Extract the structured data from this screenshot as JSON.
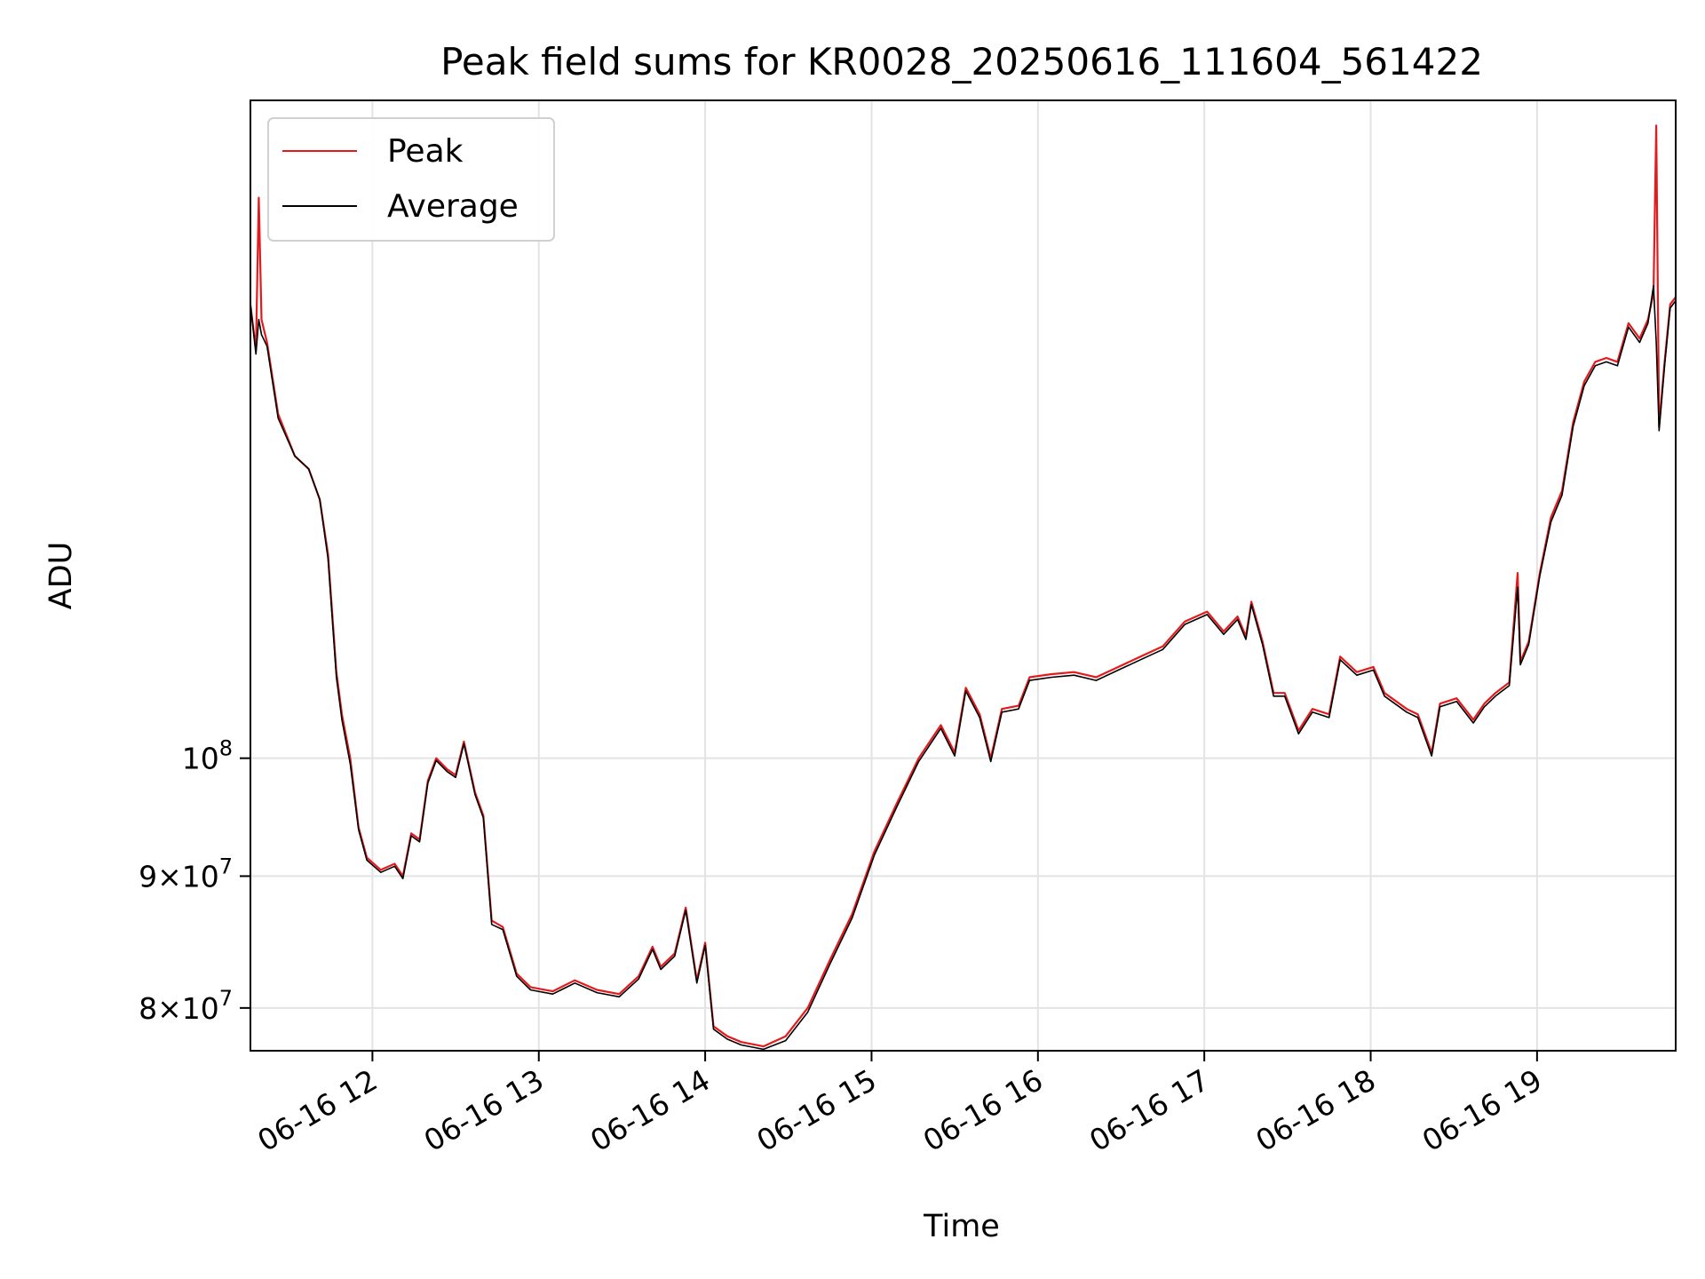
{
  "chart_data": {
    "type": "line",
    "title": "Peak field sums for KR0028_20250616_111604_561422",
    "xlabel": "Time",
    "ylabel": "ADU",
    "x_axis": {
      "kind": "datetime",
      "range": [
        "2025-06-16 11:16",
        "2025-06-16 19:50"
      ],
      "ticks": [
        "2025-06-16 12:00",
        "2025-06-16 13:00",
        "2025-06-16 14:00",
        "2025-06-16 15:00",
        "2025-06-16 16:00",
        "2025-06-16 17:00",
        "2025-06-16 18:00",
        "2025-06-16 19:00"
      ],
      "tick_labels": [
        "06-16 12",
        "06-16 13",
        "06-16 14",
        "06-16 15",
        "06-16 16",
        "06-16 17",
        "06-16 18",
        "06-16 19"
      ],
      "tick_rotation_deg": 30
    },
    "y_axis": {
      "scale": "log",
      "range": [
        77000000,
        180000000
      ],
      "ticks": [
        80000000,
        90000000,
        100000000
      ],
      "tick_labels": [
        {
          "base": "8",
          "exp": "7",
          "form": "times"
        },
        {
          "base": "9",
          "exp": "7",
          "form": "times"
        },
        {
          "base": "",
          "exp": "8",
          "form": "power"
        }
      ]
    },
    "grid": true,
    "legend_position": "upper-left",
    "colors": {
      "peak": "#e41a1c",
      "average": "#000000",
      "grid": "#e3e3e3"
    },
    "series": [
      {
        "name": "Peak",
        "color": "#e41a1c",
        "points": [
          [
            "2025-06-16 11:16",
            150000000
          ],
          [
            "2025-06-16 11:18",
            144000000
          ],
          [
            "2025-06-16 11:19",
            165000000
          ],
          [
            "2025-06-16 11:20",
            148000000
          ],
          [
            "2025-06-16 11:22",
            145000000
          ],
          [
            "2025-06-16 11:26",
            136000000
          ],
          [
            "2025-06-16 11:32",
            131000000
          ],
          [
            "2025-06-16 11:37",
            129500000
          ],
          [
            "2025-06-16 11:41",
            126000000
          ],
          [
            "2025-06-16 11:44",
            120000000
          ],
          [
            "2025-06-16 11:47",
            108000000
          ],
          [
            "2025-06-16 11:49",
            104000000
          ],
          [
            "2025-06-16 11:52",
            100000000
          ],
          [
            "2025-06-16 11:55",
            94000000
          ],
          [
            "2025-06-16 11:58",
            91500000
          ],
          [
            "2025-06-16 12:03",
            90500000
          ],
          [
            "2025-06-16 12:08",
            91000000
          ],
          [
            "2025-06-16 12:11",
            90000000
          ],
          [
            "2025-06-16 12:14",
            93500000
          ],
          [
            "2025-06-16 12:17",
            93000000
          ],
          [
            "2025-06-16 12:20",
            98000000
          ],
          [
            "2025-06-16 12:23",
            100000000
          ],
          [
            "2025-06-16 12:27",
            99000000
          ],
          [
            "2025-06-16 12:30",
            98500000
          ],
          [
            "2025-06-16 12:33",
            101500000
          ],
          [
            "2025-06-16 12:37",
            97000000
          ],
          [
            "2025-06-16 12:40",
            95000000
          ],
          [
            "2025-06-16 12:43",
            86500000
          ],
          [
            "2025-06-16 12:47",
            86000000
          ],
          [
            "2025-06-16 12:52",
            82500000
          ],
          [
            "2025-06-16 12:57",
            81500000
          ],
          [
            "2025-06-16 13:05",
            81200000
          ],
          [
            "2025-06-16 13:13",
            82000000
          ],
          [
            "2025-06-16 13:21",
            81300000
          ],
          [
            "2025-06-16 13:29",
            81000000
          ],
          [
            "2025-06-16 13:36",
            82300000
          ],
          [
            "2025-06-16 13:41",
            84500000
          ],
          [
            "2025-06-16 13:44",
            83000000
          ],
          [
            "2025-06-16 13:49",
            84000000
          ],
          [
            "2025-06-16 13:53",
            87500000
          ],
          [
            "2025-06-16 13:57",
            82000000
          ],
          [
            "2025-06-16 14:00",
            84800000
          ],
          [
            "2025-06-16 14:03",
            78700000
          ],
          [
            "2025-06-16 14:08",
            78000000
          ],
          [
            "2025-06-16 14:13",
            77600000
          ],
          [
            "2025-06-16 14:21",
            77300000
          ],
          [
            "2025-06-16 14:29",
            78000000
          ],
          [
            "2025-06-16 14:37",
            80000000
          ],
          [
            "2025-06-16 14:45",
            83500000
          ],
          [
            "2025-06-16 14:53",
            87000000
          ],
          [
            "2025-06-16 15:01",
            92000000
          ],
          [
            "2025-06-16 15:09",
            96000000
          ],
          [
            "2025-06-16 15:17",
            100000000
          ],
          [
            "2025-06-16 15:25",
            103000000
          ],
          [
            "2025-06-16 15:30",
            100500000
          ],
          [
            "2025-06-16 15:34",
            106500000
          ],
          [
            "2025-06-16 15:39",
            104000000
          ],
          [
            "2025-06-16 15:43",
            100000000
          ],
          [
            "2025-06-16 15:47",
            104500000
          ],
          [
            "2025-06-16 15:53",
            104800000
          ],
          [
            "2025-06-16 15:57",
            107500000
          ],
          [
            "2025-06-16 16:05",
            107800000
          ],
          [
            "2025-06-16 16:13",
            108000000
          ],
          [
            "2025-06-16 16:21",
            107500000
          ],
          [
            "2025-06-16 16:29",
            108500000
          ],
          [
            "2025-06-16 16:37",
            109500000
          ],
          [
            "2025-06-16 16:45",
            110500000
          ],
          [
            "2025-06-16 16:53",
            113000000
          ],
          [
            "2025-06-16 17:01",
            114000000
          ],
          [
            "2025-06-16 17:07",
            112000000
          ],
          [
            "2025-06-16 17:12",
            113500000
          ],
          [
            "2025-06-16 17:15",
            111500000
          ],
          [
            "2025-06-16 17:17",
            115000000
          ],
          [
            "2025-06-16 17:21",
            111000000
          ],
          [
            "2025-06-16 17:25",
            106000000
          ],
          [
            "2025-06-16 17:29",
            106000000
          ],
          [
            "2025-06-16 17:34",
            102500000
          ],
          [
            "2025-06-16 17:39",
            104500000
          ],
          [
            "2025-06-16 17:45",
            104000000
          ],
          [
            "2025-06-16 17:49",
            109500000
          ],
          [
            "2025-06-16 17:55",
            108000000
          ],
          [
            "2025-06-16 18:01",
            108500000
          ],
          [
            "2025-06-16 18:05",
            106000000
          ],
          [
            "2025-06-16 18:13",
            104500000
          ],
          [
            "2025-06-16 18:17",
            104000000
          ],
          [
            "2025-06-16 18:22",
            100500000
          ],
          [
            "2025-06-16 18:25",
            105000000
          ],
          [
            "2025-06-16 18:31",
            105500000
          ],
          [
            "2025-06-16 18:37",
            103500000
          ],
          [
            "2025-06-16 18:41",
            105000000
          ],
          [
            "2025-06-16 18:45",
            106000000
          ],
          [
            "2025-06-16 18:50",
            107000000
          ],
          [
            "2025-06-16 18:53",
            118000000
          ],
          [
            "2025-06-16 18:54",
            109000000
          ],
          [
            "2025-06-16 18:57",
            111000000
          ],
          [
            "2025-06-16 19:01",
            118000000
          ],
          [
            "2025-06-16 19:05",
            124000000
          ],
          [
            "2025-06-16 19:09",
            127000000
          ],
          [
            "2025-06-16 19:13",
            135000000
          ],
          [
            "2025-06-16 19:17",
            140000000
          ],
          [
            "2025-06-16 19:21",
            142500000
          ],
          [
            "2025-06-16 19:25",
            143000000
          ],
          [
            "2025-06-16 19:29",
            142500000
          ],
          [
            "2025-06-16 19:33",
            147500000
          ],
          [
            "2025-06-16 19:37",
            145500000
          ],
          [
            "2025-06-16 19:40",
            148000000
          ],
          [
            "2025-06-16 19:42",
            151500000
          ],
          [
            "2025-06-16 19:43",
            176000000
          ],
          [
            "2025-06-16 19:44",
            134500000
          ],
          [
            "2025-06-16 19:46",
            142500000
          ],
          [
            "2025-06-16 19:48",
            150000000
          ],
          [
            "2025-06-16 19:50",
            151000000
          ]
        ]
      },
      {
        "name": "Average",
        "color": "#000000",
        "points": [
          [
            "2025-06-16 11:16",
            150000000
          ],
          [
            "2025-06-16 11:18",
            143500000
          ],
          [
            "2025-06-16 11:19",
            148000000
          ],
          [
            "2025-06-16 11:20",
            146000000
          ],
          [
            "2025-06-16 11:22",
            144500000
          ],
          [
            "2025-06-16 11:26",
            135500000
          ],
          [
            "2025-06-16 11:32",
            131000000
          ],
          [
            "2025-06-16 11:37",
            129500000
          ],
          [
            "2025-06-16 11:41",
            126000000
          ],
          [
            "2025-06-16 11:44",
            119500000
          ],
          [
            "2025-06-16 11:47",
            107500000
          ],
          [
            "2025-06-16 11:49",
            103500000
          ],
          [
            "2025-06-16 11:52",
            99500000
          ],
          [
            "2025-06-16 11:55",
            93800000
          ],
          [
            "2025-06-16 11:58",
            91300000
          ],
          [
            "2025-06-16 12:03",
            90300000
          ],
          [
            "2025-06-16 12:08",
            90800000
          ],
          [
            "2025-06-16 12:11",
            89800000
          ],
          [
            "2025-06-16 12:14",
            93300000
          ],
          [
            "2025-06-16 12:17",
            92800000
          ],
          [
            "2025-06-16 12:20",
            97800000
          ],
          [
            "2025-06-16 12:23",
            99800000
          ],
          [
            "2025-06-16 12:27",
            98800000
          ],
          [
            "2025-06-16 12:30",
            98300000
          ],
          [
            "2025-06-16 12:33",
            101300000
          ],
          [
            "2025-06-16 12:37",
            96800000
          ],
          [
            "2025-06-16 12:40",
            94800000
          ],
          [
            "2025-06-16 12:43",
            86200000
          ],
          [
            "2025-06-16 12:47",
            85800000
          ],
          [
            "2025-06-16 12:52",
            82300000
          ],
          [
            "2025-06-16 12:57",
            81300000
          ],
          [
            "2025-06-16 13:05",
            81000000
          ],
          [
            "2025-06-16 13:13",
            81800000
          ],
          [
            "2025-06-16 13:21",
            81100000
          ],
          [
            "2025-06-16 13:29",
            80800000
          ],
          [
            "2025-06-16 13:36",
            82100000
          ],
          [
            "2025-06-16 13:41",
            84300000
          ],
          [
            "2025-06-16 13:44",
            82800000
          ],
          [
            "2025-06-16 13:49",
            83800000
          ],
          [
            "2025-06-16 13:53",
            87300000
          ],
          [
            "2025-06-16 13:57",
            81800000
          ],
          [
            "2025-06-16 14:00",
            84600000
          ],
          [
            "2025-06-16 14:03",
            78500000
          ],
          [
            "2025-06-16 14:08",
            77800000
          ],
          [
            "2025-06-16 14:13",
            77400000
          ],
          [
            "2025-06-16 14:21",
            77100000
          ],
          [
            "2025-06-16 14:29",
            77700000
          ],
          [
            "2025-06-16 14:37",
            79700000
          ],
          [
            "2025-06-16 14:45",
            83200000
          ],
          [
            "2025-06-16 14:53",
            86700000
          ],
          [
            "2025-06-16 15:01",
            91700000
          ],
          [
            "2025-06-16 15:09",
            95700000
          ],
          [
            "2025-06-16 15:17",
            99700000
          ],
          [
            "2025-06-16 15:25",
            102700000
          ],
          [
            "2025-06-16 15:30",
            100200000
          ],
          [
            "2025-06-16 15:34",
            106200000
          ],
          [
            "2025-06-16 15:39",
            103700000
          ],
          [
            "2025-06-16 15:43",
            99700000
          ],
          [
            "2025-06-16 15:47",
            104200000
          ],
          [
            "2025-06-16 15:53",
            104500000
          ],
          [
            "2025-06-16 15:57",
            107200000
          ],
          [
            "2025-06-16 16:05",
            107500000
          ],
          [
            "2025-06-16 16:13",
            107700000
          ],
          [
            "2025-06-16 16:21",
            107200000
          ],
          [
            "2025-06-16 16:29",
            108200000
          ],
          [
            "2025-06-16 16:37",
            109200000
          ],
          [
            "2025-06-16 16:45",
            110200000
          ],
          [
            "2025-06-16 16:53",
            112700000
          ],
          [
            "2025-06-16 17:01",
            113700000
          ],
          [
            "2025-06-16 17:07",
            111700000
          ],
          [
            "2025-06-16 17:12",
            113200000
          ],
          [
            "2025-06-16 17:15",
            111200000
          ],
          [
            "2025-06-16 17:17",
            114700000
          ],
          [
            "2025-06-16 17:21",
            110700000
          ],
          [
            "2025-06-16 17:25",
            105700000
          ],
          [
            "2025-06-16 17:29",
            105700000
          ],
          [
            "2025-06-16 17:34",
            102200000
          ],
          [
            "2025-06-16 17:39",
            104200000
          ],
          [
            "2025-06-16 17:45",
            103700000
          ],
          [
            "2025-06-16 17:49",
            109200000
          ],
          [
            "2025-06-16 17:55",
            107700000
          ],
          [
            "2025-06-16 18:01",
            108200000
          ],
          [
            "2025-06-16 18:05",
            105700000
          ],
          [
            "2025-06-16 18:13",
            104200000
          ],
          [
            "2025-06-16 18:17",
            103700000
          ],
          [
            "2025-06-16 18:22",
            100200000
          ],
          [
            "2025-06-16 18:25",
            104700000
          ],
          [
            "2025-06-16 18:31",
            105200000
          ],
          [
            "2025-06-16 18:37",
            103200000
          ],
          [
            "2025-06-16 18:41",
            104700000
          ],
          [
            "2025-06-16 18:45",
            105700000
          ],
          [
            "2025-06-16 18:50",
            106700000
          ],
          [
            "2025-06-16 18:53",
            116500000
          ],
          [
            "2025-06-16 18:54",
            108700000
          ],
          [
            "2025-06-16 18:57",
            110700000
          ],
          [
            "2025-06-16 19:01",
            117700000
          ],
          [
            "2025-06-16 19:05",
            123500000
          ],
          [
            "2025-06-16 19:09",
            126500000
          ],
          [
            "2025-06-16 19:13",
            134500000
          ],
          [
            "2025-06-16 19:17",
            139500000
          ],
          [
            "2025-06-16 19:21",
            142000000
          ],
          [
            "2025-06-16 19:25",
            142500000
          ],
          [
            "2025-06-16 19:29",
            142000000
          ],
          [
            "2025-06-16 19:33",
            147000000
          ],
          [
            "2025-06-16 19:37",
            145000000
          ],
          [
            "2025-06-16 19:40",
            147500000
          ],
          [
            "2025-06-16 19:42",
            152500000
          ],
          [
            "2025-06-16 19:43",
            145000000
          ],
          [
            "2025-06-16 19:44",
            134000000
          ],
          [
            "2025-06-16 19:46",
            142000000
          ],
          [
            "2025-06-16 19:48",
            149500000
          ],
          [
            "2025-06-16 19:50",
            150500000
          ]
        ]
      }
    ]
  }
}
